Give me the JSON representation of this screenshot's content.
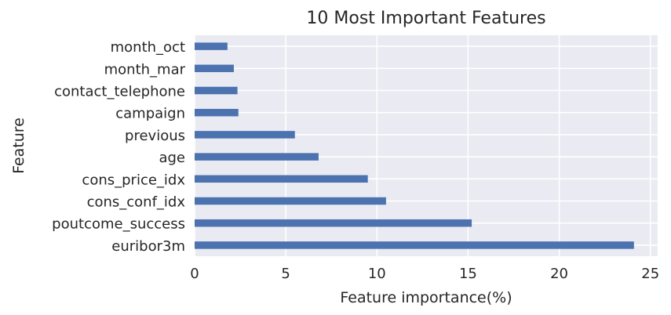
{
  "chart_data": {
    "type": "bar",
    "orientation": "horizontal",
    "title": "10 Most Important Features",
    "xlabel": "Feature importance(%)",
    "ylabel": "Feature",
    "categories": [
      "euribor3m",
      "poutcome_success",
      "cons_conf_idx",
      "cons_price_idx",
      "age",
      "previous",
      "campaign",
      "contact_telephone",
      "month_mar",
      "month_oct"
    ],
    "values": [
      24.1,
      15.2,
      10.5,
      9.5,
      6.8,
      5.5,
      2.4,
      2.35,
      2.15,
      1.8
    ],
    "xlim": [
      0,
      25.4
    ],
    "xticks": [
      0,
      5,
      10,
      15,
      20,
      25
    ],
    "grid": true,
    "bar_color": "#4c72b0",
    "plot_background": "#eaeaf2",
    "grid_color": "#ffffff"
  }
}
